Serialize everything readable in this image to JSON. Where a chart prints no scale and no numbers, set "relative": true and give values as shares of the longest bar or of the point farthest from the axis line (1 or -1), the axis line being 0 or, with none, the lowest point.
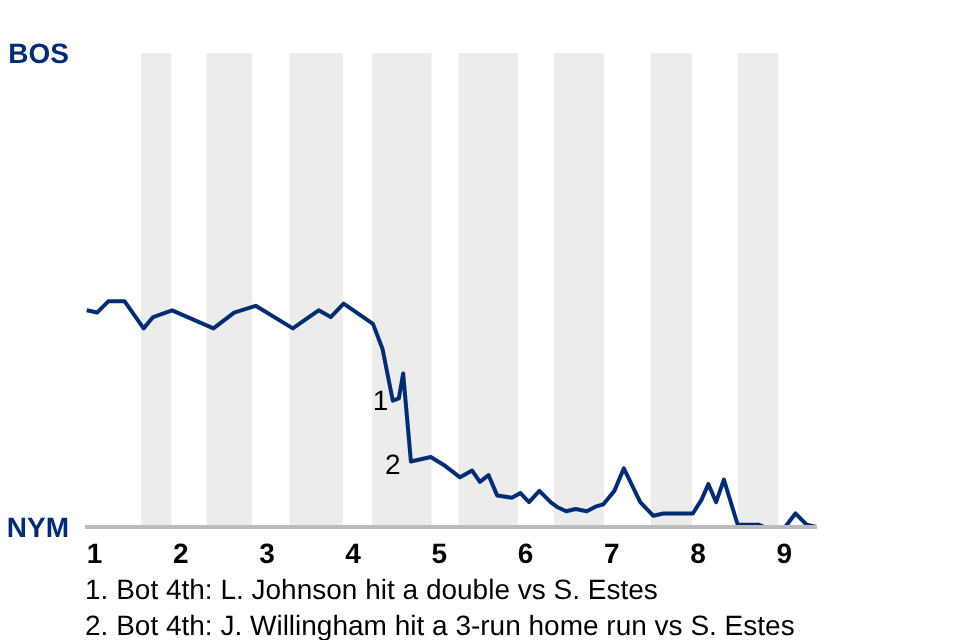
{
  "chart_data": {
    "type": "line",
    "relative": true,
    "x": [
      0.91,
      1.03,
      1.16,
      1.35,
      1.57,
      1.68,
      1.9,
      2.38,
      2.62,
      2.87,
      3.3,
      3.6,
      3.74,
      3.89,
      4.23,
      4.34,
      4.46,
      4.53,
      4.58,
      4.67,
      4.9,
      5.07,
      5.24,
      5.38,
      5.47,
      5.57,
      5.67,
      5.84,
      5.94,
      6.04,
      6.16,
      6.29,
      6.36,
      6.47,
      6.58,
      6.71,
      6.81,
      6.9,
      7.03,
      7.14,
      7.33,
      7.48,
      7.6,
      7.94,
      8.04,
      8.12,
      8.21,
      8.3,
      8.46,
      8.7,
      8.77,
      8.92,
      9.01,
      9.13,
      9.26,
      9.38
    ],
    "series": [
      {
        "color": "#002d72",
        "values": [
          0.96,
          0.95,
          1,
          1,
          0.88,
          0.93,
          0.96,
          0.88,
          0.95,
          0.98,
          0.88,
          0.96,
          0.93,
          0.99,
          0.9,
          0.79,
          0.56,
          0.57,
          0.68,
          0.29,
          0.31,
          0.27,
          0.22,
          0.25,
          0.2,
          0.23,
          0.14,
          0.13,
          0.15,
          0.11,
          0.16,
          0.11,
          0.09,
          0.07,
          0.08,
          0.07,
          0.09,
          0.1,
          0.16,
          0.26,
          0.11,
          0.05,
          0.06,
          0.06,
          0.12,
          0.19,
          0.11,
          0.21,
          0.01,
          0.01,
          0,
          0,
          0,
          0.06,
          0.01,
          0
        ]
      }
    ],
    "xlim": [
      0.89,
      9.38
    ],
    "xticks": [
      1,
      2,
      3,
      4,
      5,
      6,
      7,
      8,
      9
    ],
    "bands": [
      {
        "axis": "x",
        "from": 1.54,
        "to": 1.89,
        "color": "#ececec"
      },
      {
        "axis": "x",
        "from": 2.3,
        "to": 2.83,
        "color": "#ececec"
      },
      {
        "axis": "x",
        "from": 3.26,
        "to": 3.88,
        "color": "#ececec"
      },
      {
        "axis": "x",
        "from": 4.22,
        "to": 4.91,
        "color": "#ececec"
      },
      {
        "axis": "x",
        "from": 5.22,
        "to": 5.91,
        "color": "#ececec"
      },
      {
        "axis": "x",
        "from": 6.33,
        "to": 6.91,
        "color": "#ececec"
      },
      {
        "axis": "x",
        "from": 7.45,
        "to": 7.93,
        "color": "#ececec"
      },
      {
        "axis": "x",
        "from": 8.46,
        "to": 8.93,
        "color": "#ececec"
      }
    ],
    "annotations": [
      "BOS",
      "NYM",
      {
        "text": "1",
        "x": 4.53,
        "y": 0.57
      },
      {
        "text": "2",
        "x": 4.67,
        "y": 0.29
      },
      "1. Bot 4th: L. Johnson hit a double vs S. Estes",
      "2. Bot 4th: J. Willingham hit a 3-run home run vs S. Estes"
    ],
    "marker": "none"
  }
}
